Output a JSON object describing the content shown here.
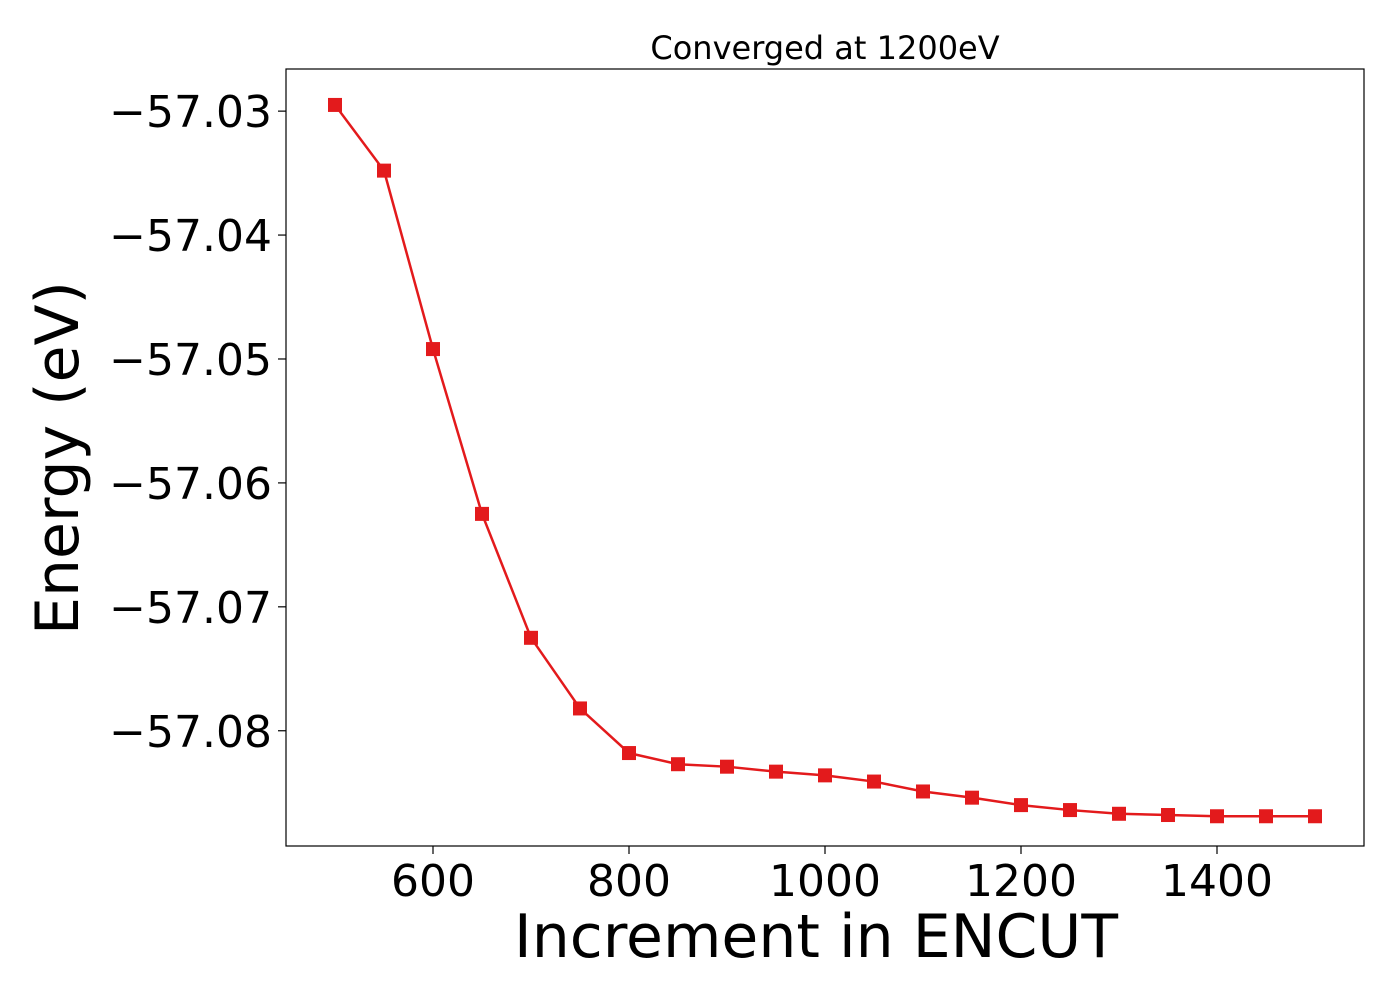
{
  "chart_data": {
    "type": "line",
    "title": "Converged at 1200eV",
    "xlabel": "Increment in ENCUT",
    "ylabel": "Energy (eV)",
    "xlim": [
      450,
      1550
    ],
    "ylim": [
      -57.0893,
      -57.0266
    ],
    "x_ticks": [
      600,
      800,
      1000,
      1200,
      1400
    ],
    "y_ticks": [
      -57.03,
      -57.04,
      -57.05,
      -57.06,
      -57.07,
      -57.08
    ],
    "x_tick_labels": [
      "600",
      "800",
      "1000",
      "1200",
      "1400"
    ],
    "y_tick_labels": [
      "−57.03",
      "−57.04",
      "−57.05",
      "−57.06",
      "−57.07",
      "−57.08"
    ],
    "grid": false,
    "marker": "square",
    "color": "#e31a1c",
    "x": [
      500,
      550,
      600,
      650,
      700,
      750,
      800,
      850,
      900,
      950,
      1000,
      1050,
      1100,
      1150,
      1200,
      1250,
      1300,
      1350,
      1400,
      1450,
      1500
    ],
    "y": [
      -57.0295,
      -57.0348,
      -57.0492,
      -57.0625,
      -57.0725,
      -57.0782,
      -57.0818,
      -57.0827,
      -57.0829,
      -57.0833,
      -57.0836,
      -57.0841,
      -57.0849,
      -57.0854,
      -57.086,
      -57.0864,
      -57.0867,
      -57.0868,
      -57.0869,
      -57.0869,
      -57.0869
    ]
  }
}
